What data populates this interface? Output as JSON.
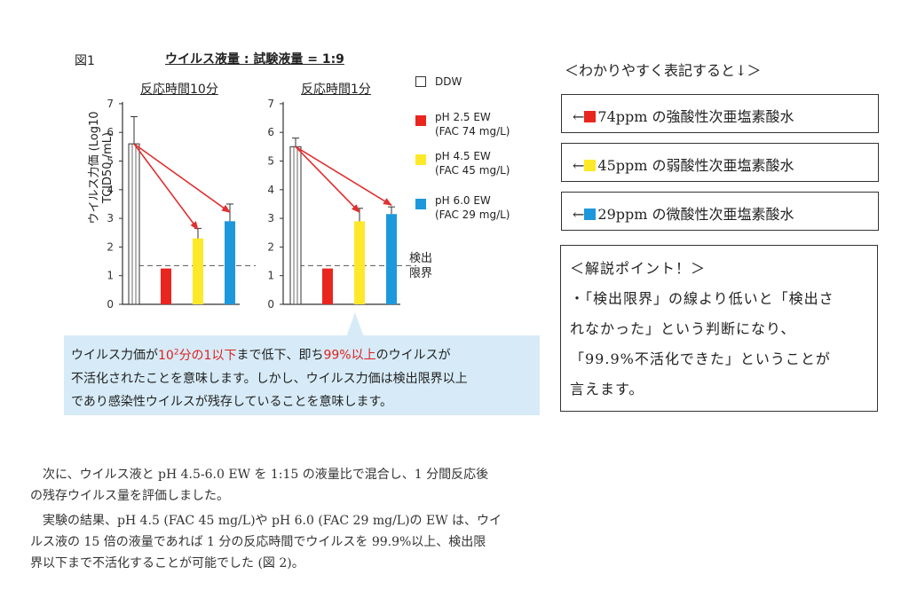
{
  "figure": {
    "label": "図1",
    "title": "ウイルス液量 : 試験液量 = 1:9",
    "ylabel": "ウイルス力価 (Log10 TCID50 /mL)",
    "detection_limit_label_1": "検出",
    "detection_limit_label_2": "限界"
  },
  "chart_data": {
    "type": "bar",
    "ylim": [
      0,
      7
    ],
    "yticks": [
      "0",
      "1",
      "2",
      "3",
      "4",
      "5",
      "6",
      "7"
    ],
    "detection_limit": 1.35,
    "categories": [
      "DDW",
      "pH 2.5 EW",
      "pH 4.5 EW",
      "pH 6.0 EW"
    ],
    "colors": [
      "#ffffff",
      "#e8261e",
      "#fde92a",
      "#1e98dc"
    ],
    "panels": [
      {
        "title": "反応時間10分",
        "values": [
          5.6,
          1.25,
          2.3,
          2.9
        ],
        "errors": [
          0.95,
          0,
          0.35,
          0.6
        ]
      },
      {
        "title": "反応時間1分",
        "values": [
          5.5,
          1.25,
          2.9,
          3.15
        ],
        "errors": [
          0.3,
          0,
          0.45,
          0.25
        ]
      }
    ]
  },
  "legend": [
    {
      "line1": "DDW",
      "line2": ""
    },
    {
      "line1": "pH 2.5 EW",
      "line2": "(FAC 74 mg/L)"
    },
    {
      "line1": "pH 4.5 EW",
      "line2": "(FAC 45 mg/L)"
    },
    {
      "line1": "pH 6.0 EW",
      "line2": "(FAC 29 mg/L)"
    }
  ],
  "callout": {
    "l1a": "ウイルス力価が",
    "l1b": "10",
    "l1c": "2",
    "l1d": "分の1以下",
    "l1e": "まで低下、即ち",
    "l1f": "99%以上",
    "l1g": "のウイルスが",
    "l2": "不活化されたことを意味します。しかし、ウイルス力価は検出限界以上",
    "l3": "であり感染性ウイルスが残存していることを意味します。"
  },
  "side": {
    "heading": "＜わかりやすく表記すると↓＞",
    "boxes": [
      {
        "arrow": "←",
        "text": "74ppm の強酸性次亜塩素酸水",
        "color": "#e8261e"
      },
      {
        "arrow": "←",
        "text": "45ppm の弱酸性次亜塩素酸水",
        "color": "#fde92a"
      },
      {
        "arrow": "←",
        "text": "29ppm の微酸性次亜塩素酸水",
        "color": "#1e98dc"
      }
    ],
    "explain": {
      "title": "＜解説ポイント！＞",
      "lines": [
        "・「検出限界」の線より低いと「検出さ",
        "れなかった」という判断になり、",
        "「99.9%不活化できた」ということが",
        "言えます。"
      ]
    }
  },
  "body_text": {
    "p1a": "次に、ウイルス液と pH 4.5-6.0 EW を 1:15 の液量比で混合し、1 分間反応後",
    "p1b": "の残存ウイルス量を評価しました。",
    "p2a": "実験の結果、pH 4.5 (FAC 45 mg/L)や pH 6.0 (FAC 29 mg/L)の EW は、ウイ",
    "p2b": "ルス液の 15 倍の液量であれば 1 分の反応時間でウイルスを 99.9%以上、検出限",
    "p2c": "界以下まで不活化することが可能でした (図 2)。"
  }
}
